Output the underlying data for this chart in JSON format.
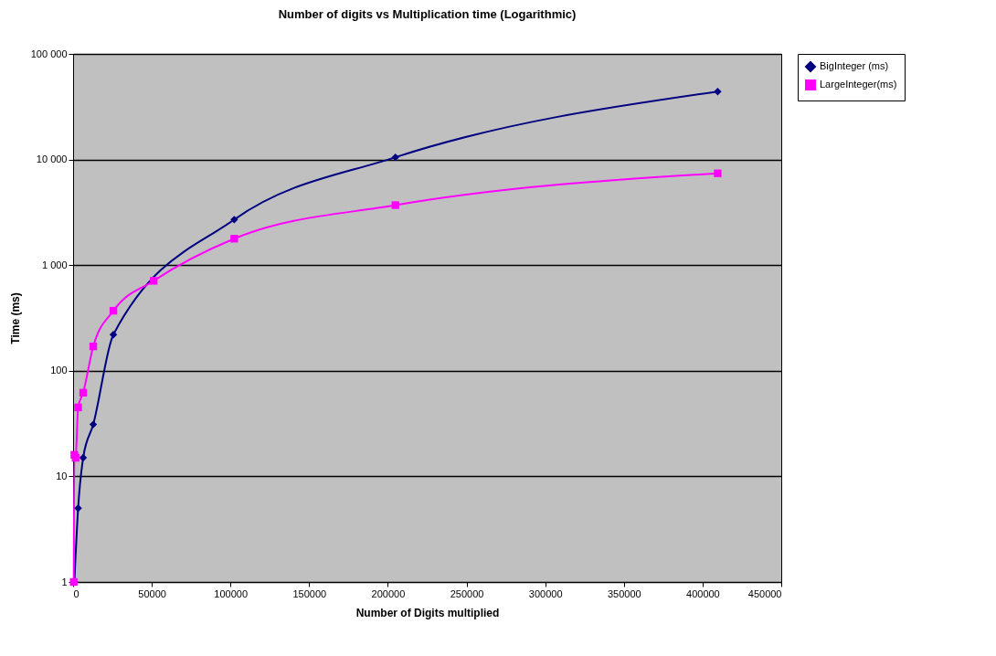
{
  "chart_data": {
    "type": "line",
    "title": "Number of digits vs Multiplication time (Logarithmic)",
    "xlabel": "Number of Digits multiplied",
    "ylabel": "Time (ms)",
    "x": [
      400,
      800,
      1600,
      3200,
      6400,
      12800,
      25600,
      51200,
      102400,
      204800,
      409600
    ],
    "series": [
      {
        "name": "BigInteger (ms)",
        "color": "#000080",
        "marker": "diamond",
        "values": [
          null,
          1,
          null,
          5,
          15,
          31,
          220,
          null,
          2700,
          10500,
          44000
        ]
      },
      {
        "name": "LargeInteger(ms)",
        "color": "#ff00ff",
        "marker": "square",
        "values": [
          1,
          16,
          15,
          45,
          62,
          170,
          370,
          710,
          1780,
          3700,
          7400
        ]
      }
    ],
    "log": "y",
    "xlim": [
      0,
      450000
    ],
    "xticks": [
      0,
      50000,
      100000,
      150000,
      200000,
      250000,
      300000,
      350000,
      400000,
      450000
    ],
    "ylim": [
      1,
      100000
    ],
    "yticks": [
      1,
      10,
      100,
      {
        "value": 1000,
        "label": "1 000"
      },
      {
        "value": 10000,
        "label": "10 000"
      },
      {
        "value": 100000,
        "label": "100 000"
      }
    ],
    "grid": "y",
    "legend": "right",
    "line_style": "solid"
  }
}
